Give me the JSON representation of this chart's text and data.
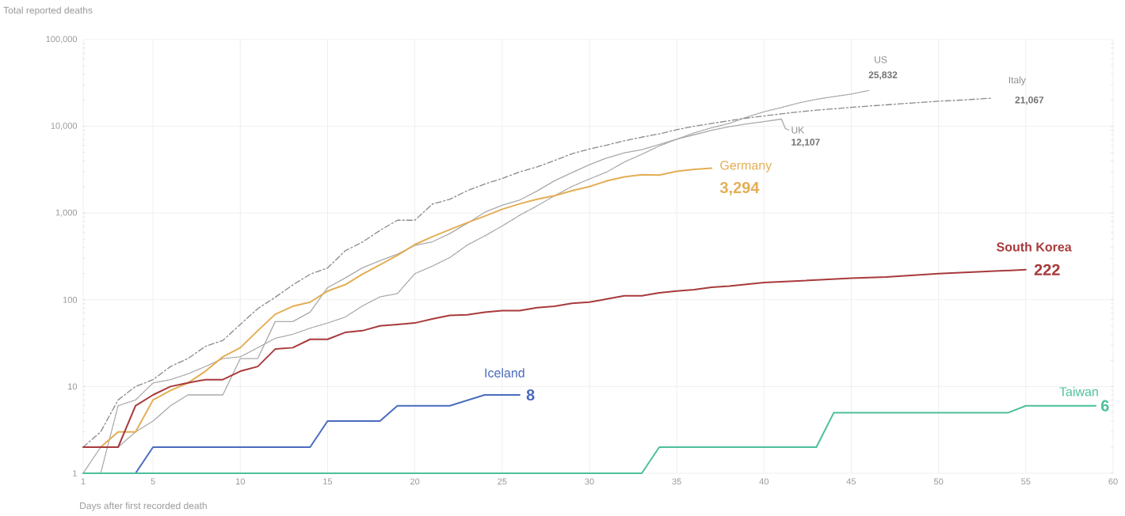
{
  "chart_data": {
    "type": "line",
    "xlabel": "Days after first recorded death",
    "ylabel": "Total reported deaths",
    "log": "y",
    "grid": true,
    "xlim": [
      1,
      60
    ],
    "xticks": [
      1,
      5,
      10,
      15,
      20,
      25,
      30,
      35,
      40,
      45,
      50,
      55,
      60
    ],
    "ylim": [
      1,
      100000
    ],
    "yticks": [
      1,
      10,
      100,
      {
        "value": 1000,
        "label": "1,000"
      },
      {
        "value": 10000,
        "label": "10,000"
      },
      {
        "value": 100000,
        "label": "100,000"
      }
    ],
    "series": [
      {
        "name": "US",
        "color": "#9a9a9a",
        "line_style": "dotted",
        "x": [
          2,
          3,
          4,
          5,
          6,
          7,
          8,
          9,
          10,
          11,
          12,
          13,
          14,
          15,
          16,
          17,
          18,
          19,
          20,
          21,
          22,
          23,
          24,
          25,
          26,
          27,
          28,
          29,
          30,
          31,
          32,
          33,
          34,
          35,
          36,
          37,
          38,
          39,
          40,
          41,
          42,
          43,
          44,
          45,
          46
        ],
        "values": [
          1,
          6,
          7,
          11,
          12,
          14,
          17,
          21,
          22,
          28,
          36,
          40,
          47,
          54,
          63,
          85,
          108,
          118,
          200,
          244,
          307,
          427,
          545,
          708,
          942,
          1209,
          1581,
          2026,
          2467,
          2978,
          3873,
          4757,
          5926,
          7087,
          8407,
          9619,
          10783,
          12722,
          14695,
          16478,
          18586,
          20463,
          22020,
          23529,
          25832
        ]
      },
      {
        "name": "Italy",
        "color": "#8a8a8a",
        "line_style": "dashed",
        "x": [
          1,
          2,
          3,
          4,
          5,
          6,
          7,
          8,
          9,
          10,
          11,
          12,
          13,
          14,
          15,
          16,
          17,
          18,
          19,
          20,
          21,
          22,
          23,
          24,
          25,
          26,
          27,
          28,
          29,
          30,
          31,
          32,
          33,
          34,
          35,
          36,
          37,
          38,
          39,
          40,
          41,
          42,
          43,
          44,
          45,
          46,
          47,
          48,
          49,
          50,
          51,
          52,
          53
        ],
        "values": [
          2,
          3,
          7,
          10,
          12,
          17,
          21,
          29,
          34,
          52,
          79,
          107,
          148,
          197,
          233,
          366,
          463,
          631,
          827,
          827,
          1266,
          1441,
          1809,
          2158,
          2503,
          2978,
          3405,
          4032,
          4825,
          5476,
          6077,
          6820,
          7503,
          8165,
          9134,
          10023,
          10779,
          11591,
          12428,
          13155,
          13915,
          14681,
          15362,
          15887,
          16523,
          17127,
          17669,
          18279,
          18849,
          19468,
          19899,
          20465,
          21067
        ]
      },
      {
        "name": "UK",
        "color": "#aaaaaa",
        "line_style": "solid",
        "x": [
          1,
          2,
          3,
          4,
          5,
          6,
          7,
          8,
          9,
          10,
          11,
          12,
          13,
          14,
          15,
          16,
          17,
          18,
          19,
          20,
          21,
          22,
          23,
          24,
          25,
          26,
          27,
          28,
          29,
          30,
          31,
          32,
          33,
          34,
          35,
          36,
          37,
          38,
          39,
          40,
          41
        ],
        "values": [
          1,
          2,
          2,
          3,
          4,
          6,
          8,
          8,
          8,
          21,
          21,
          56,
          56,
          72,
          138,
          178,
          234,
          282,
          336,
          423,
          466,
          580,
          761,
          1021,
          1231,
          1411,
          1793,
          2357,
          2926,
          3611,
          4320,
          4943,
          5385,
          6171,
          7111,
          7993,
          8974,
          9892,
          10629,
          11347,
          12107
        ]
      },
      {
        "name": "Germany",
        "color": "#e3ae55",
        "line_style": "solid",
        "x": [
          1,
          2,
          3,
          4,
          5,
          6,
          7,
          8,
          9,
          10,
          11,
          12,
          13,
          14,
          15,
          16,
          17,
          18,
          19,
          20,
          21,
          22,
          23,
          24,
          25,
          26,
          27,
          28,
          29,
          30,
          31,
          32,
          33,
          34,
          35,
          36,
          37
        ],
        "values": [
          2,
          2,
          3,
          3,
          7,
          9,
          11,
          15,
          22,
          28,
          44,
          68,
          84,
          94,
          126,
          149,
          198,
          253,
          325,
          433,
          533,
          645,
          775,
          920,
          1107,
          1275,
          1444,
          1584,
          1810,
          2016,
          2349,
          2607,
          2767,
          2736,
          3022,
          3194,
          3294
        ]
      },
      {
        "name": "South Korea",
        "color": "#a83a3c",
        "line_style": "solid",
        "x": [
          1,
          2,
          3,
          4,
          5,
          6,
          7,
          8,
          9,
          10,
          11,
          12,
          13,
          14,
          15,
          16,
          17,
          18,
          19,
          20,
          21,
          22,
          23,
          24,
          25,
          26,
          27,
          28,
          29,
          30,
          31,
          32,
          33,
          34,
          35,
          36,
          37,
          38,
          40,
          45,
          47,
          50,
          55
        ],
        "values": [
          2,
          2,
          2,
          6,
          8,
          10,
          11,
          12,
          12,
          15,
          17,
          27,
          28,
          35,
          35,
          42,
          44,
          50,
          52,
          54,
          60,
          66,
          67,
          72,
          75,
          75,
          81,
          84,
          91,
          94,
          102,
          111,
          111,
          120,
          126,
          131,
          139,
          144,
          158,
          177,
          183,
          200,
          222
        ]
      },
      {
        "name": "Iceland",
        "color": "#4a6bbd",
        "line_style": "solid",
        "x": [
          4,
          5,
          14,
          15,
          18,
          19,
          22,
          24,
          26
        ],
        "values": [
          1,
          2,
          2,
          4,
          4,
          6,
          6,
          8,
          8
        ]
      },
      {
        "name": "Taiwan",
        "color": "#4cbf9c",
        "line_style": "solid",
        "x": [
          1,
          33,
          34,
          43,
          44,
          54,
          55,
          59
        ],
        "values": [
          1,
          1,
          2,
          2,
          5,
          5,
          6,
          6
        ]
      }
    ],
    "annotations": [
      {
        "text": "25,832",
        "x": 46,
        "y": 25832
      },
      {
        "text": "21,067",
        "x": 53,
        "y": 21067
      },
      {
        "text": "12,107",
        "x": 41,
        "y": 12107
      },
      {
        "text": "3,294",
        "x": 37,
        "y": 3294
      },
      {
        "text": "222",
        "x": 55,
        "y": 222
      },
      {
        "text": "8",
        "x": 26,
        "y": 8
      },
      {
        "text": "6",
        "x": 59,
        "y": 6
      }
    ]
  }
}
